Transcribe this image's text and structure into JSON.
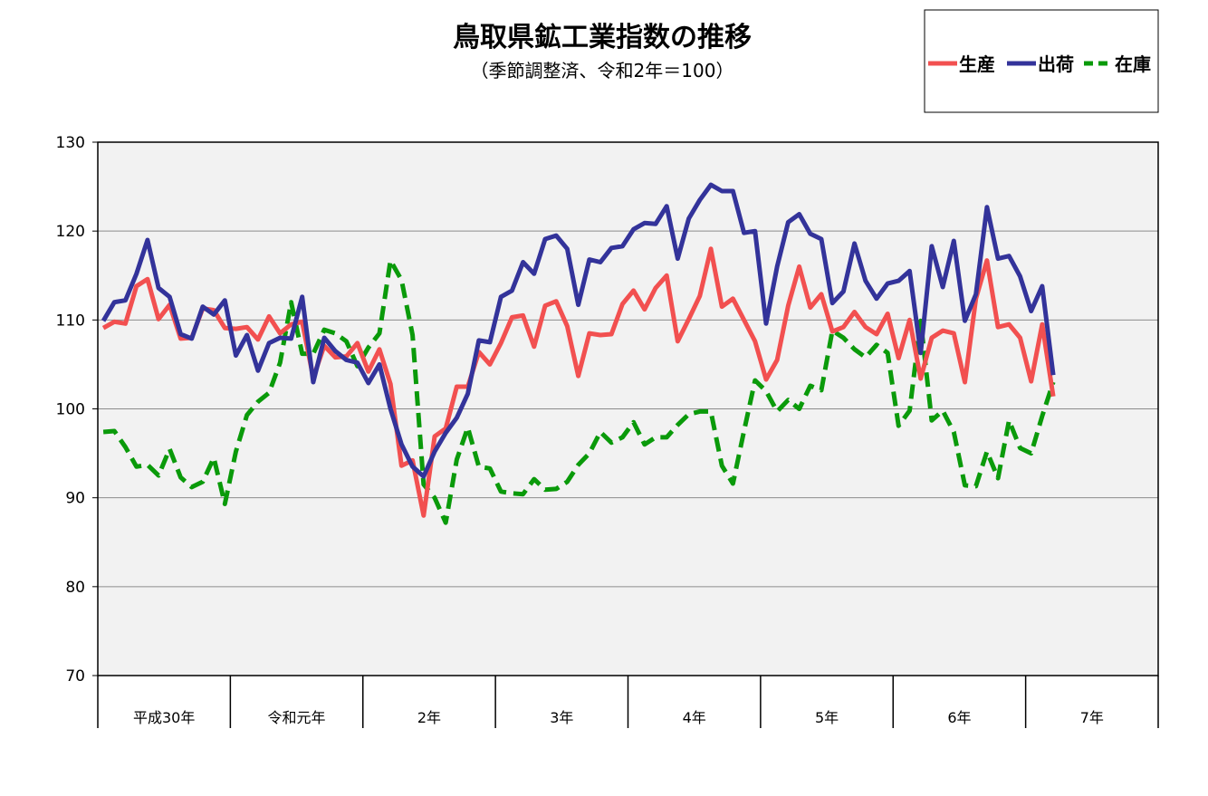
{
  "chart_data": {
    "type": "line",
    "title": "鳥取県鉱工業指数の推移",
    "subtitle": "（季節調整済、令和2年＝100）",
    "ylim": [
      70,
      130
    ],
    "yticks": [
      70,
      80,
      90,
      100,
      110,
      120,
      130
    ],
    "grid": true,
    "legend_position": "top-right",
    "x_unit": "month",
    "period_labels": [
      "平成30年",
      "令和元年",
      "2年",
      "3年",
      "4年",
      "5年",
      "6年",
      "7年"
    ],
    "months_per_period": 12,
    "series": [
      {
        "name": "生産",
        "color": "#f25050",
        "dash": "solid",
        "values": [
          109.1,
          109.8,
          109.6,
          113.8,
          114.6,
          110.1,
          111.7,
          107.9,
          108.0,
          111.3,
          111.1,
          109.1,
          109.0,
          109.2,
          107.8,
          110.4,
          108.5,
          109.5,
          109.8,
          103.5,
          107.1,
          105.8,
          105.9,
          107.4,
          104.2,
          106.7,
          102.8,
          93.6,
          94.2,
          88.0,
          96.9,
          97.8,
          102.5,
          102.5,
          106.4,
          105.0,
          107.4,
          110.3,
          110.5,
          107.0,
          111.6,
          112.1,
          109.3,
          103.7,
          108.5,
          108.3,
          108.4,
          111.8,
          113.3,
          111.2,
          113.6,
          115.0,
          107.6,
          110.1,
          112.7,
          118.0,
          111.5,
          112.4,
          110.0,
          107.6,
          103.3,
          105.5,
          111.6,
          116.0,
          111.4,
          112.9,
          108.7,
          109.2,
          110.9,
          109.2,
          108.4,
          110.7,
          105.7,
          110.0,
          103.4,
          108.0,
          108.8,
          108.5,
          103.0,
          112.4,
          116.7,
          109.2,
          109.5,
          108.0,
          103.1,
          109.5,
          101.4
        ]
      },
      {
        "name": "出荷",
        "color": "#33339a",
        "dash": "solid",
        "values": [
          109.9,
          112.0,
          112.2,
          115.2,
          119.0,
          113.6,
          112.6,
          108.4,
          107.9,
          111.5,
          110.6,
          112.2,
          106.0,
          108.3,
          104.3,
          107.4,
          108.0,
          107.9,
          112.6,
          103.0,
          108.0,
          106.5,
          105.5,
          105.2,
          102.9,
          105.0,
          100.0,
          96.0,
          93.5,
          92.4,
          95.2,
          97.3,
          99.0,
          101.7,
          107.7,
          107.5,
          112.6,
          113.3,
          116.5,
          115.2,
          119.1,
          119.5,
          118.0,
          111.7,
          116.8,
          116.5,
          118.1,
          118.3,
          120.2,
          120.9,
          120.8,
          122.8,
          116.9,
          121.4,
          123.5,
          125.2,
          124.5,
          124.5,
          119.8,
          120.0,
          109.6,
          116.0,
          121.0,
          121.9,
          119.7,
          119.1,
          111.9,
          113.2,
          118.6,
          114.4,
          112.4,
          114.1,
          114.4,
          115.5,
          106.3,
          118.3,
          113.7,
          118.9,
          109.9,
          112.9,
          122.7,
          116.9,
          117.2,
          114.9,
          111.0,
          113.8,
          103.8
        ]
      },
      {
        "name": "在庫",
        "color": "#0a9a0a",
        "dash": "dashed",
        "values": [
          97.4,
          97.5,
          95.7,
          93.5,
          93.7,
          92.5,
          95.5,
          92.3,
          91.2,
          91.8,
          94.5,
          89.3,
          95.2,
          99.3,
          100.8,
          101.8,
          105.2,
          112.0,
          106.2,
          106.2,
          108.9,
          108.5,
          107.6,
          104.8,
          106.9,
          108.5,
          116.7,
          114.5,
          108.3,
          91.5,
          90.0,
          87.2,
          94.3,
          97.9,
          93.5,
          93.3,
          90.7,
          90.5,
          90.4,
          92.1,
          90.9,
          91.0,
          91.8,
          93.7,
          95.0,
          97.4,
          96.2,
          96.8,
          98.5,
          96.0,
          96.8,
          96.8,
          98.2,
          99.4,
          99.7,
          99.7,
          93.6,
          91.6,
          97.5,
          103.2,
          102.0,
          99.7,
          101.0,
          100.0,
          102.6,
          102.1,
          108.8,
          108.0,
          106.7,
          105.8,
          107.2,
          106.3,
          98.1,
          99.8,
          109.9,
          98.7,
          99.8,
          97.4,
          91.4,
          91.3,
          95.2,
          92.2,
          98.7,
          95.6,
          95.0,
          99.2,
          103.0
        ]
      }
    ]
  }
}
